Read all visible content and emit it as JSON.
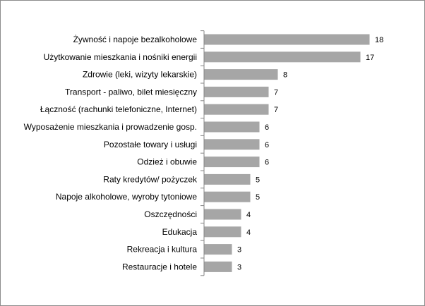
{
  "chart_data": {
    "type": "bar",
    "orientation": "horizontal",
    "categories": [
      "Żywność i napoje bezalkoholowe",
      "Użytkowanie mieszkania i nośniki energii",
      "Zdrowie (leki, wizyty lekarskie)",
      "Transport - paliwo, bilet miesięczny",
      "Łączność (rachunki telefoniczne, Internet)",
      "Wyposażenie mieszkania i prowadzenie gosp.",
      "Pozostałe towary i usługi",
      "Odzież i obuwie",
      "Raty kredytów/ pożyczek",
      "Napoje alkoholowe, wyroby tytoniowe",
      "Oszczędności",
      "Edukacja",
      "Rekreacja i kultura",
      "Restauracje i hotele"
    ],
    "values": [
      18,
      17,
      8,
      7,
      7,
      6,
      6,
      6,
      5,
      5,
      4,
      4,
      3,
      3
    ],
    "data_labels": [
      "18",
      "17",
      "8",
      "7",
      "7",
      "6",
      "6",
      "6",
      "5",
      "5",
      "4",
      "4",
      "3",
      "3"
    ],
    "xlim": [
      0,
      19
    ],
    "grid": false,
    "legend": "none",
    "bar_color": "#a6a6a6",
    "axis_color": "#868686"
  }
}
